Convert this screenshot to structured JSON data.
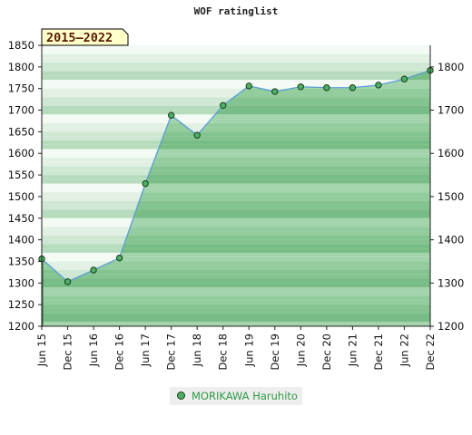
{
  "chart_data": {
    "type": "area",
    "title": "WOF ratinglist",
    "period_badge": "2015–2022",
    "categories": [
      "Jun 15",
      "Dec 15",
      "Jun 16",
      "Dec 16",
      "Jun 17",
      "Dec 17",
      "Jun 18",
      "Dec 18",
      "Jun 19",
      "Dec 19",
      "Jun 20",
      "Dec 20",
      "Jun 21",
      "Dec 21",
      "Jun 22",
      "Dec 22"
    ],
    "series": [
      {
        "name": "MORIKAWA Haruhito",
        "values": [
          1356,
          1303,
          1330,
          1358,
          1530,
          1688,
          1642,
          1711,
          1756,
          1743,
          1754,
          1752,
          1752,
          1758,
          1772,
          1792
        ],
        "color": "#4caf65"
      }
    ],
    "ylim_left": [
      1200,
      1850
    ],
    "ylim_right": [
      1200,
      1850
    ],
    "yticks_left": [
      1200,
      1250,
      1300,
      1350,
      1400,
      1450,
      1500,
      1550,
      1600,
      1650,
      1700,
      1750,
      1800,
      1850
    ],
    "yticks_right": [
      1200,
      1300,
      1400,
      1500,
      1600,
      1700,
      1800
    ],
    "line_color": "#5a9fd4",
    "band_colors": [
      "#f4faf4",
      "#e2f1e4",
      "#cfe8d3",
      "#b7dcbd"
    ],
    "area_band_colors": [
      "#a3d4ac",
      "#93cc9d",
      "#84c490",
      "#78bd85"
    ],
    "grid": false,
    "legend": "bottom"
  }
}
